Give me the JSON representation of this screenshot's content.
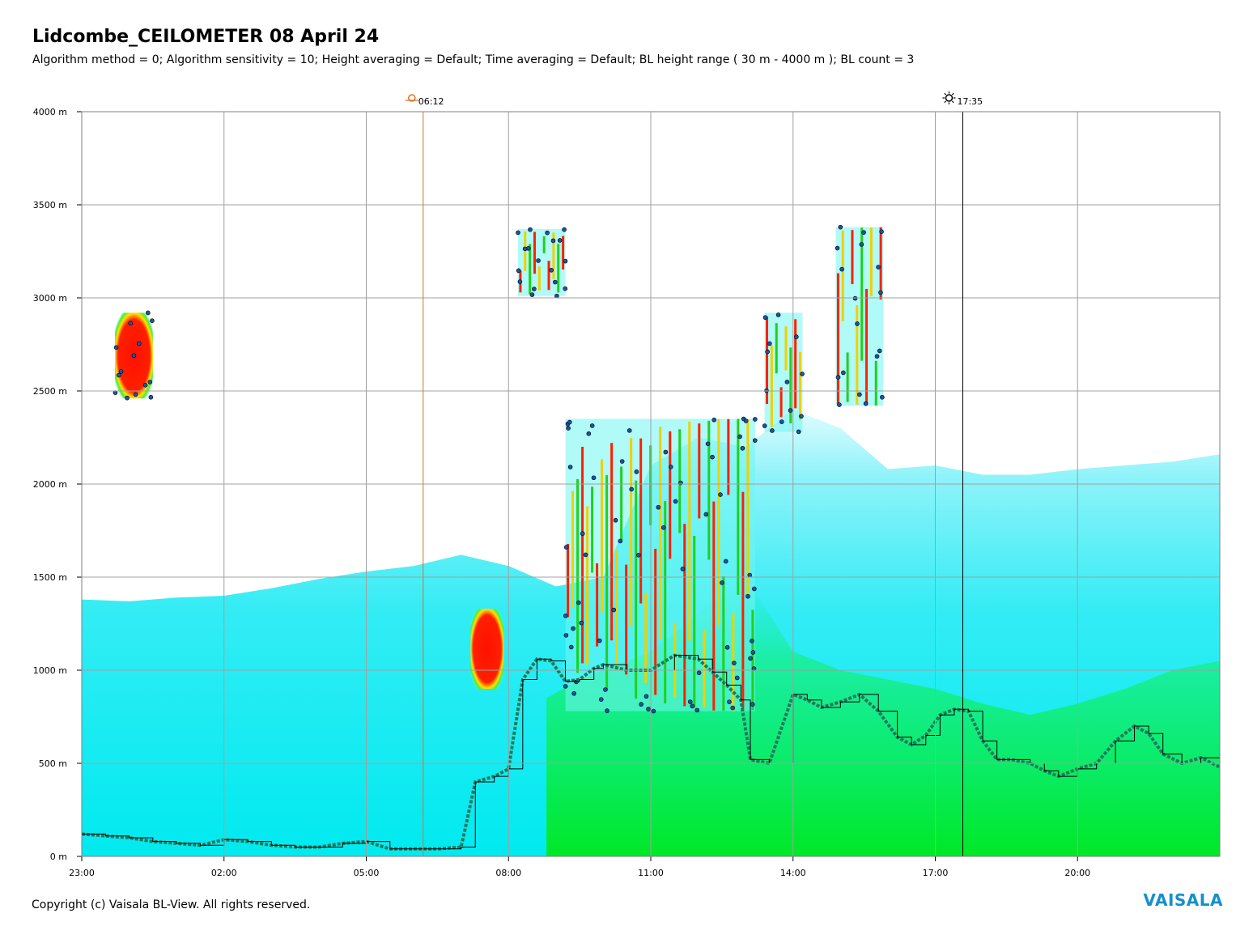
{
  "header": {
    "title": "Lidcombe_CEILOMETER 08 April 24",
    "subtitle": "Algorithm method = 0; Algorithm sensitivity = 10; Height averaging = Default; Time averaging = Default; BL height range ( 30 m - 4000 m ); BL count = 3"
  },
  "footer": {
    "copyright": "Copyright (c) Vaisala BL-View. All rights reserved.",
    "logo": "VAISALA"
  },
  "colors": {
    "background_signal": "#00e5f0",
    "strong_signal": "#ff1a00",
    "medium_signal": "#00e000",
    "bl_marker": "#1f7a5c",
    "cloud_point": "#1a56a8",
    "grid": "#a0a0a0",
    "sunrise_line": "#c87832",
    "sunset_line": "#000000",
    "logo": "#1490cc"
  },
  "chart_data": {
    "type": "heatmap",
    "title": "Lidcombe_CEILOMETER 08 April 24",
    "xlabel": "",
    "ylabel": "",
    "x_ticks": [
      "23:00",
      "02:00",
      "05:00",
      "08:00",
      "11:00",
      "14:00",
      "17:00",
      "20:00"
    ],
    "x_range_hours": [
      0,
      24
    ],
    "y_ticks": [
      "0 m",
      "500 m",
      "1000 m",
      "1500 m",
      "2000 m",
      "2500 m",
      "3000 m",
      "3500 m",
      "4000 m"
    ],
    "y_range_m": [
      0,
      4000
    ],
    "grid": true,
    "sunrise": {
      "label": "06:12",
      "hours_from_start": 7.2,
      "icon": "sunrise-icon"
    },
    "sunset": {
      "label": "17:35",
      "hours_from_start": 18.58,
      "icon": "sunset-icon"
    },
    "aerosol_top_profile": [
      [
        0,
        1380
      ],
      [
        1,
        1370
      ],
      [
        2,
        1390
      ],
      [
        3,
        1400
      ],
      [
        4,
        1440
      ],
      [
        5,
        1490
      ],
      [
        6,
        1530
      ],
      [
        7,
        1560
      ],
      [
        8,
        1620
      ],
      [
        9,
        1560
      ],
      [
        10,
        1450
      ],
      [
        11,
        1500
      ],
      [
        12,
        2100
      ],
      [
        13,
        2250
      ],
      [
        14,
        2200
      ],
      [
        15,
        2400
      ],
      [
        16,
        2300
      ],
      [
        17,
        2080
      ],
      [
        18,
        2100
      ],
      [
        19,
        2050
      ],
      [
        20,
        2050
      ],
      [
        21,
        2080
      ],
      [
        22,
        2100
      ],
      [
        23,
        2120
      ],
      [
        24,
        2160
      ]
    ],
    "bl_height_series": {
      "name": "BL height",
      "points": [
        [
          0,
          120
        ],
        [
          0.5,
          110
        ],
        [
          1,
          100
        ],
        [
          1.5,
          80
        ],
        [
          2,
          70
        ],
        [
          2.5,
          60
        ],
        [
          3,
          90
        ],
        [
          3.5,
          80
        ],
        [
          4,
          60
        ],
        [
          4.5,
          50
        ],
        [
          5,
          50
        ],
        [
          5.5,
          70
        ],
        [
          6,
          80
        ],
        [
          6.5,
          40
        ],
        [
          7,
          40
        ],
        [
          7.5,
          40
        ],
        [
          8,
          50
        ],
        [
          8.3,
          400
        ],
        [
          8.7,
          430
        ],
        [
          9,
          470
        ],
        [
          9.3,
          950
        ],
        [
          9.6,
          1060
        ],
        [
          9.9,
          1050
        ],
        [
          10.2,
          940
        ],
        [
          10.5,
          950
        ],
        [
          10.8,
          1010
        ],
        [
          11.0,
          1030
        ],
        [
          11.5,
          1000
        ],
        [
          12,
          1000
        ],
        [
          12.5,
          1080
        ],
        [
          13,
          1060
        ],
        [
          13.3,
          990
        ],
        [
          13.6,
          920
        ],
        [
          13.9,
          840
        ],
        [
          14.1,
          520
        ],
        [
          14.5,
          500
        ],
        [
          15,
          870
        ],
        [
          15.3,
          840
        ],
        [
          15.6,
          800
        ],
        [
          16,
          830
        ],
        [
          16.4,
          870
        ],
        [
          16.8,
          780
        ],
        [
          17.2,
          640
        ],
        [
          17.5,
          600
        ],
        [
          17.8,
          650
        ],
        [
          18.1,
          760
        ],
        [
          18.4,
          790
        ],
        [
          18.7,
          780
        ],
        [
          19,
          620
        ],
        [
          19.3,
          520
        ],
        [
          19.6,
          520
        ],
        [
          20,
          500
        ],
        [
          20.3,
          460
        ],
        [
          20.6,
          430
        ],
        [
          21,
          470
        ],
        [
          21.4,
          500
        ],
        [
          21.8,
          620
        ],
        [
          22.2,
          700
        ],
        [
          22.5,
          660
        ],
        [
          22.8,
          550
        ],
        [
          23.2,
          500
        ],
        [
          23.6,
          530
        ],
        [
          24,
          480
        ]
      ]
    },
    "cloud_patches": [
      {
        "x": [
          0.7,
          1.5
        ],
        "y": [
          2460,
          2920
        ],
        "intensity": "strong"
      },
      {
        "x": [
          9.2,
          10.2
        ],
        "y": [
          3010,
          3370
        ],
        "intensity": "mixed"
      },
      {
        "x": [
          15.9,
          16.9
        ],
        "y": [
          2420,
          3380
        ],
        "intensity": "mixed"
      },
      {
        "x": [
          10.2,
          14.2
        ],
        "y": [
          780,
          2350
        ],
        "intensity": "mixed"
      },
      {
        "x": [
          14.4,
          15.2
        ],
        "y": [
          2280,
          2920
        ],
        "intensity": "mixed"
      }
    ],
    "fog_patches": [
      {
        "x": [
          8.2,
          8.9
        ],
        "y": [
          900,
          1330
        ],
        "intensity": "strong"
      }
    ]
  }
}
